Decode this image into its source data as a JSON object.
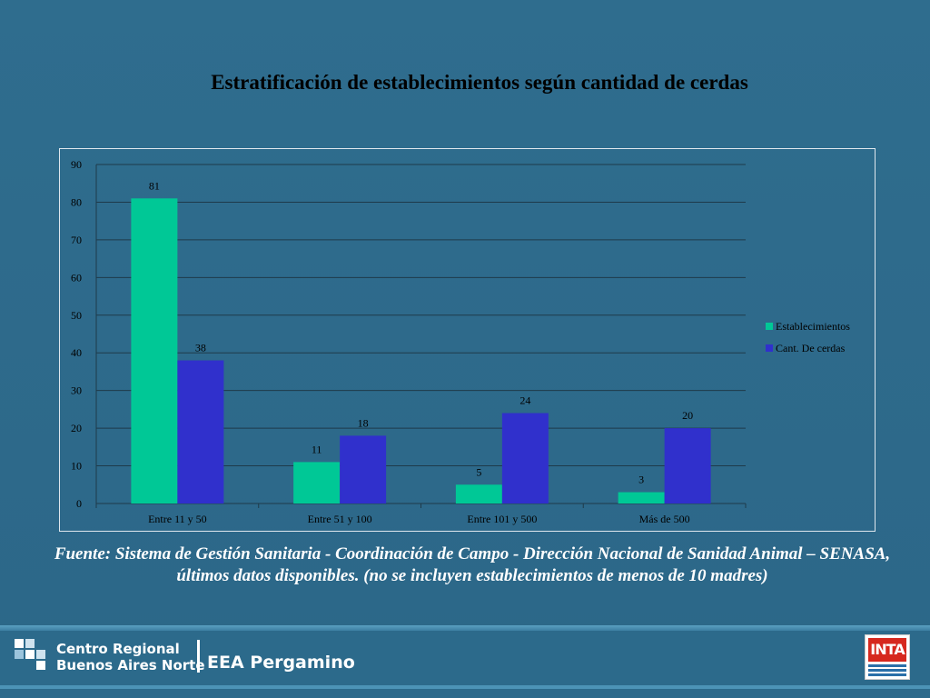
{
  "title": "Estratificación de establecimientos según cantidad de cerdas",
  "source": "Fuente: Sistema de Gestión Sanitaria - Coordinación de Campo - Dirección Nacional de Sanidad Animal – SENASA, últimos datos disponibles. (no se incluyen establecimientos de menos de 10 madres)",
  "footer": {
    "logo_line1": "Centro Regional",
    "logo_line2": "Buenos Aires Norte",
    "eea": "EEA Pergamino",
    "inta": "INTA"
  },
  "colors": {
    "background": "#2e6b8c",
    "establecimientos": "#00c896",
    "cerdas": "#3030cc",
    "gridline": "#1e3a4a",
    "text": "#000000"
  },
  "chart_data": {
    "type": "bar",
    "title": "Estratificación de establecimientos según cantidad de cerdas",
    "categories": [
      "Entre 11 y 50",
      "Entre 51 y 100",
      "Entre 101 y 500",
      "Más de 500"
    ],
    "series": [
      {
        "name": "Establecimientos",
        "values": [
          81,
          11,
          5,
          3
        ],
        "color": "#00c896"
      },
      {
        "name": "Cant. De cerdas",
        "values": [
          38,
          18,
          24,
          20
        ],
        "color": "#3030cc"
      }
    ],
    "ylim": [
      0,
      90
    ],
    "yticks": [
      0,
      10,
      20,
      30,
      40,
      50,
      60,
      70,
      80,
      90
    ],
    "xlabel": "",
    "ylabel": "",
    "grid": true,
    "legend": "right"
  }
}
